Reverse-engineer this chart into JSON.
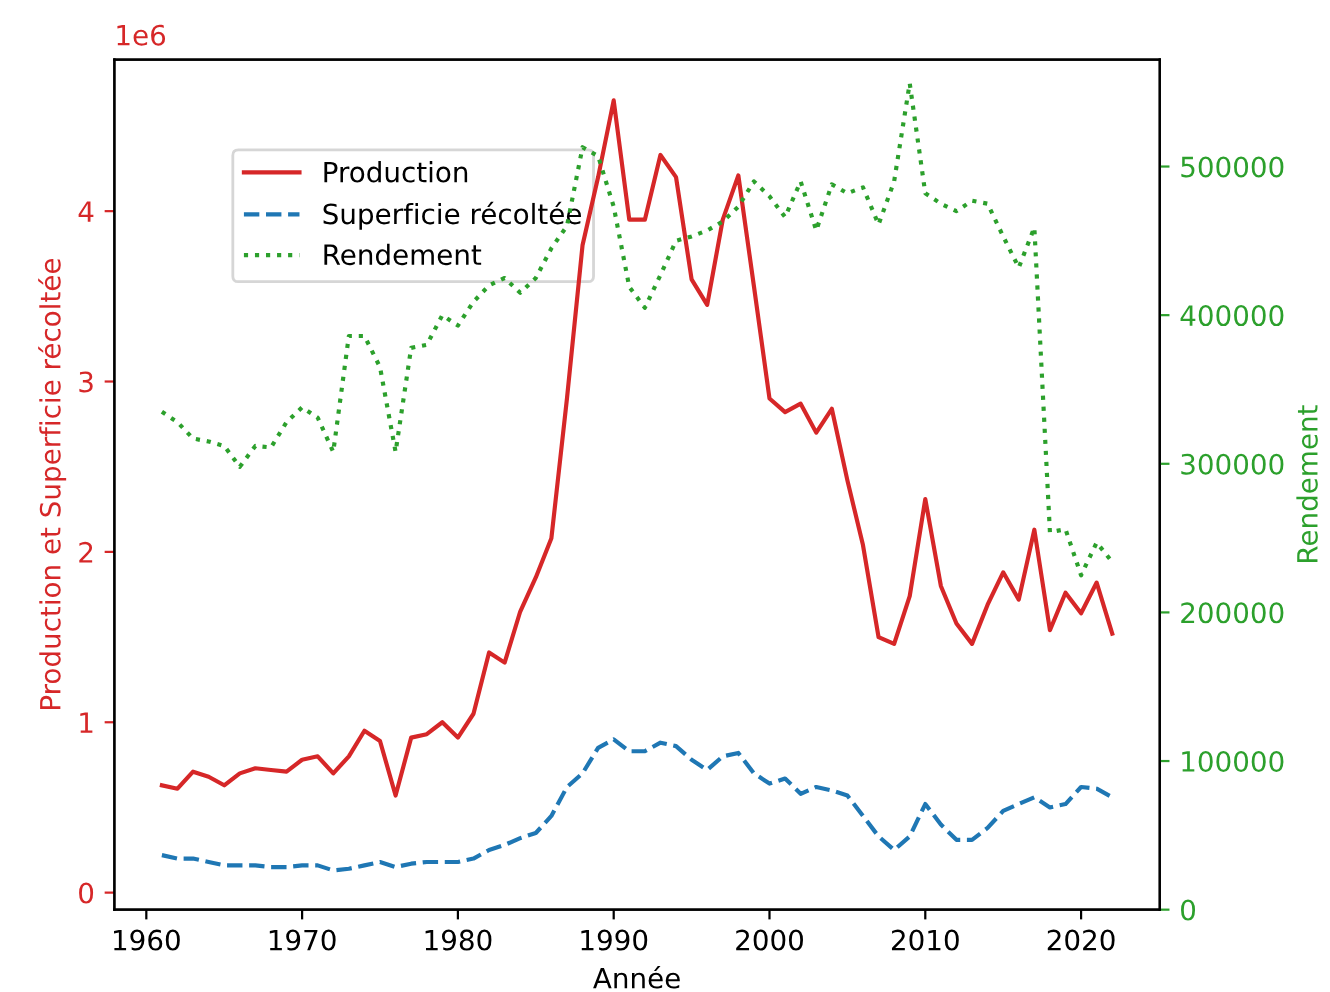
{
  "chart_data": {
    "type": "line",
    "xlabel": "Année",
    "ylabel": "Production et Superficie récoltée",
    "y2label": "Rendement",
    "annotations": [
      "1e6"
    ],
    "x": [
      1961,
      1962,
      1963,
      1964,
      1965,
      1966,
      1967,
      1968,
      1969,
      1970,
      1971,
      1972,
      1973,
      1974,
      1975,
      1976,
      1977,
      1978,
      1979,
      1980,
      1981,
      1982,
      1983,
      1984,
      1985,
      1986,
      1987,
      1988,
      1989,
      1990,
      1991,
      1992,
      1993,
      1994,
      1995,
      1996,
      1997,
      1998,
      1999,
      2000,
      2001,
      2002,
      2003,
      2004,
      2005,
      2006,
      2007,
      2008,
      2009,
      2010,
      2011,
      2012,
      2013,
      2014,
      2015,
      2016,
      2017,
      2018,
      2019,
      2020,
      2021,
      2022
    ],
    "series": [
      {
        "name": "Production",
        "color": "#d62728",
        "line_style": "solid",
        "values": [
          0.63,
          0.61,
          0.71,
          0.68,
          0.63,
          0.7,
          0.73,
          0.72,
          0.71,
          0.78,
          0.8,
          0.7,
          0.8,
          0.95,
          0.89,
          0.57,
          0.91,
          0.93,
          1.0,
          0.91,
          1.05,
          1.41,
          1.35,
          1.65,
          1.85,
          2.08,
          2.9,
          3.8,
          4.2,
          4.65,
          3.95,
          3.95,
          4.33,
          4.2,
          3.6,
          3.45,
          3.95,
          4.21,
          3.56,
          2.9,
          2.82,
          2.87,
          2.7,
          2.84,
          2.42,
          2.04,
          1.5,
          1.46,
          1.74,
          2.31,
          1.8,
          1.58,
          1.46,
          1.69,
          1.88,
          1.72,
          2.13,
          1.54,
          1.76,
          1.64,
          1.82,
          1.52
        ]
      },
      {
        "name": "Superficie récoltée",
        "color": "#1f77b4",
        "line_style": "dashed",
        "values": [
          0.22,
          0.2,
          0.2,
          0.18,
          0.16,
          0.16,
          0.16,
          0.15,
          0.15,
          0.16,
          0.16,
          0.13,
          0.14,
          0.16,
          0.18,
          0.15,
          0.17,
          0.18,
          0.18,
          0.18,
          0.2,
          0.25,
          0.28,
          0.32,
          0.35,
          0.45,
          0.62,
          0.7,
          0.85,
          0.9,
          0.83,
          0.83,
          0.88,
          0.86,
          0.78,
          0.72,
          0.8,
          0.82,
          0.7,
          0.64,
          0.67,
          0.58,
          0.62,
          0.6,
          0.57,
          0.45,
          0.33,
          0.25,
          0.33,
          0.52,
          0.4,
          0.31,
          0.31,
          0.38,
          0.48,
          0.52,
          0.56,
          0.5,
          0.52,
          0.62,
          0.61,
          0.56
        ]
      },
      {
        "name": "Rendement",
        "color": "#2ca02c",
        "line_style": "dotted",
        "axis": "y2",
        "values": [
          335000,
          328000,
          317000,
          315000,
          312000,
          298000,
          312000,
          311000,
          328000,
          338000,
          331000,
          308000,
          386000,
          386000,
          365000,
          308000,
          378000,
          380000,
          400000,
          393000,
          409000,
          420000,
          425000,
          415000,
          425000,
          445000,
          460000,
          513000,
          507000,
          473000,
          419000,
          405000,
          427000,
          450000,
          453000,
          457000,
          463000,
          473000,
          490000,
          480000,
          466000,
          490000,
          457000,
          488000,
          482000,
          486000,
          461000,
          490000,
          556000,
          482000,
          475000,
          470000,
          477000,
          475000,
          453000,
          432000,
          459000,
          254000,
          256000,
          225000,
          247000,
          234000
        ]
      }
    ],
    "xlim": [
      1957.95,
      2025.05
    ],
    "xticks": [
      1960,
      1970,
      1980,
      1990,
      2000,
      2010,
      2020
    ],
    "ylim": [
      -0.1,
      4.89
    ],
    "yticks": [
      0,
      1,
      2,
      3,
      4
    ],
    "y2lim": [
      0,
      572000
    ],
    "y2ticks": [
      0,
      100000,
      200000,
      300000,
      400000,
      500000
    ],
    "legend": "top left",
    "grid": false
  }
}
